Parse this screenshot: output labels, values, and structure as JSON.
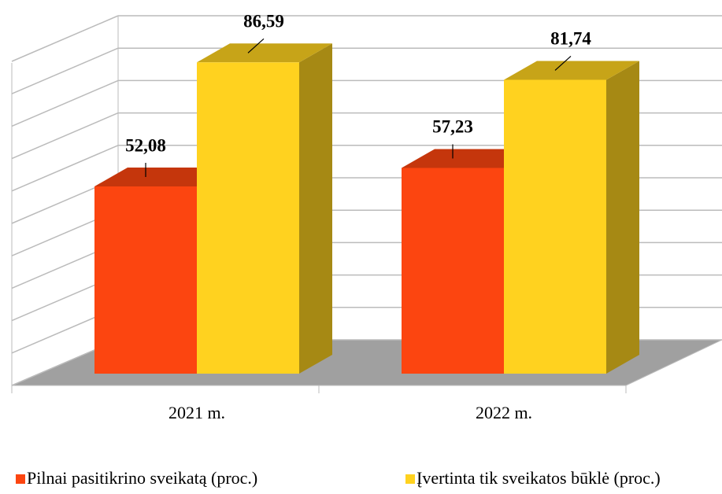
{
  "chart_data": {
    "type": "bar3d",
    "categories": [
      "2021 m.",
      "2022 m."
    ],
    "series": [
      {
        "name": "Pilnai pasitikrino sveikatą (proc.)",
        "color": "#fc4510",
        "values": [
          52.08,
          57.23
        ],
        "value_labels": [
          "52,08",
          "57,23"
        ]
      },
      {
        "name": "Įvertinta tik sveikatos būklė (proc.)",
        "color": "#ffd21f",
        "values": [
          86.59,
          81.74
        ],
        "value_labels": [
          "86,59",
          "81,74"
        ]
      }
    ],
    "ylim": [
      0,
      100
    ],
    "yticks": [
      0,
      10,
      20,
      30,
      40,
      50,
      60,
      70,
      80,
      90,
      100
    ],
    "grid": true,
    "legend": "bottom"
  }
}
